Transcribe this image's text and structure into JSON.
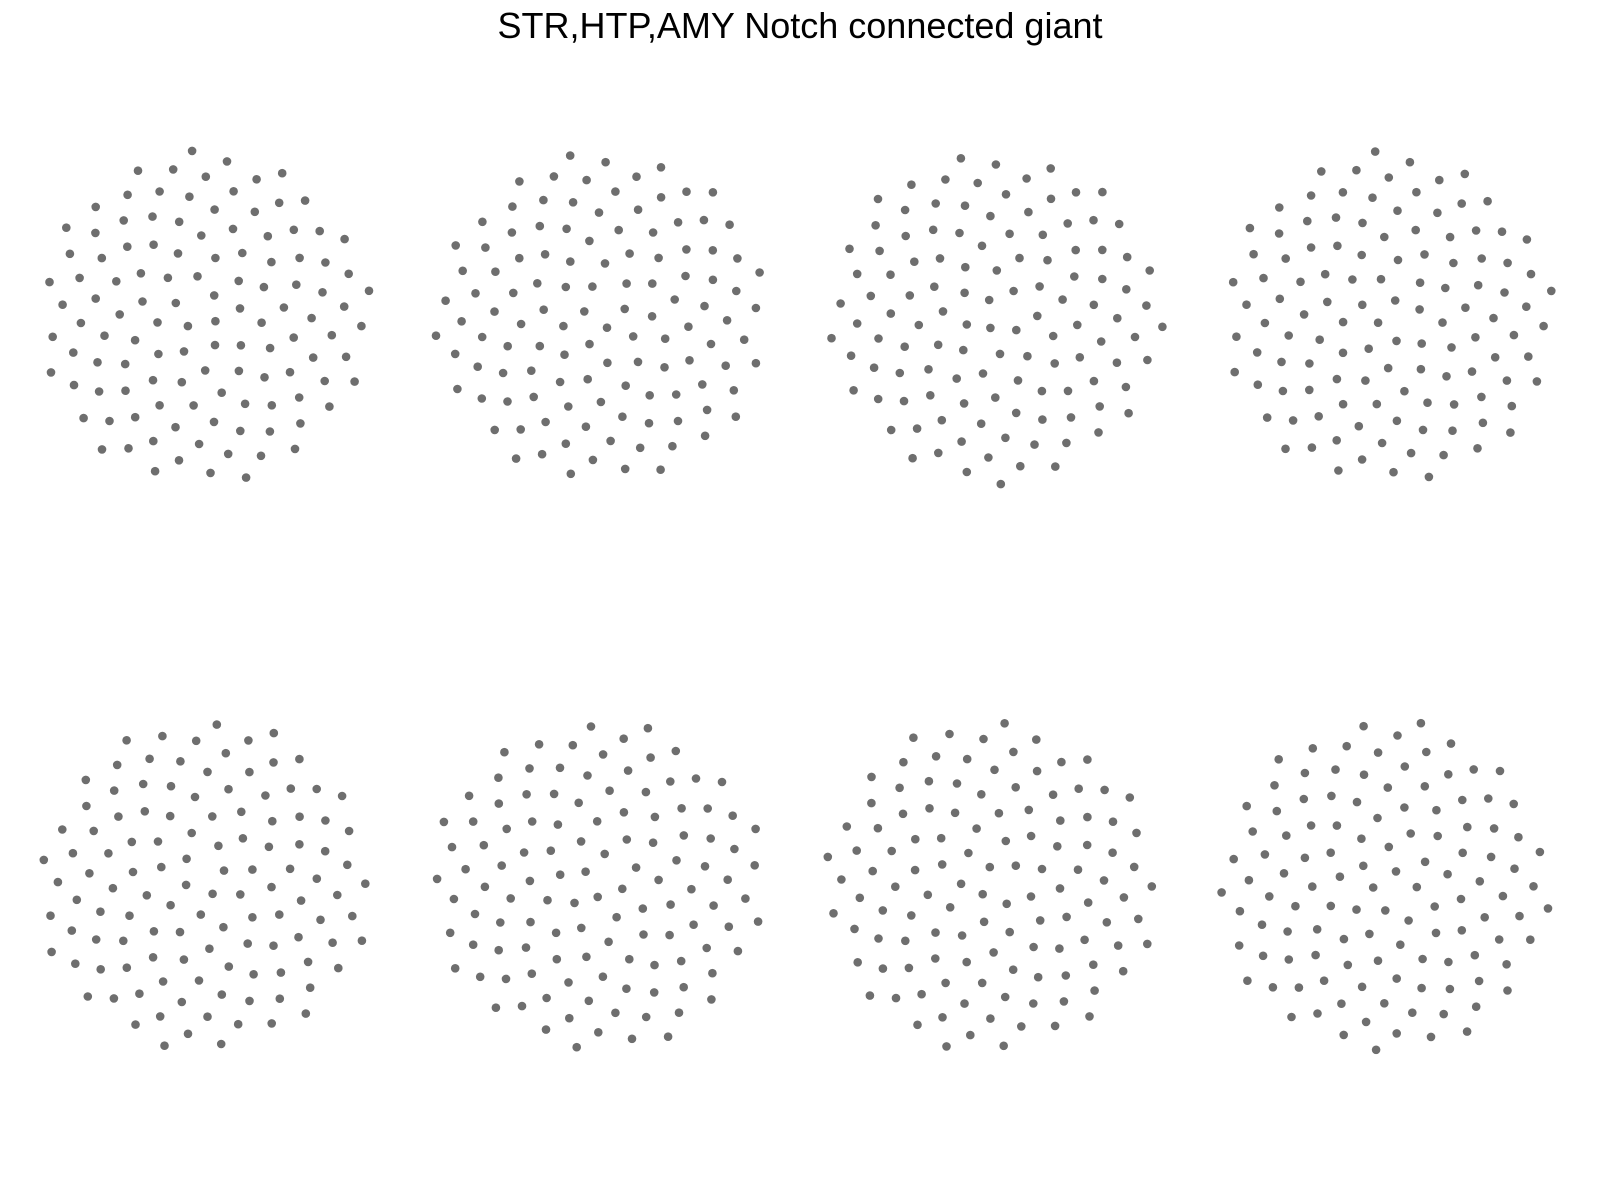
{
  "title": "STR,HTP,AMY Notch connected giant",
  "node_color": "#6e6e6e",
  "background_color": "#ffffff",
  "panels": [
    {
      "name": "panel-1",
      "node_count": 118
    },
    {
      "name": "panel-2",
      "node_count": 118
    },
    {
      "name": "panel-3",
      "node_count": 118
    },
    {
      "name": "panel-4",
      "node_count": 118
    },
    {
      "name": "panel-5",
      "node_count": 118
    },
    {
      "name": "panel-6",
      "node_count": 118
    },
    {
      "name": "panel-7",
      "node_count": 118
    },
    {
      "name": "panel-8",
      "node_count": 118
    }
  ]
}
